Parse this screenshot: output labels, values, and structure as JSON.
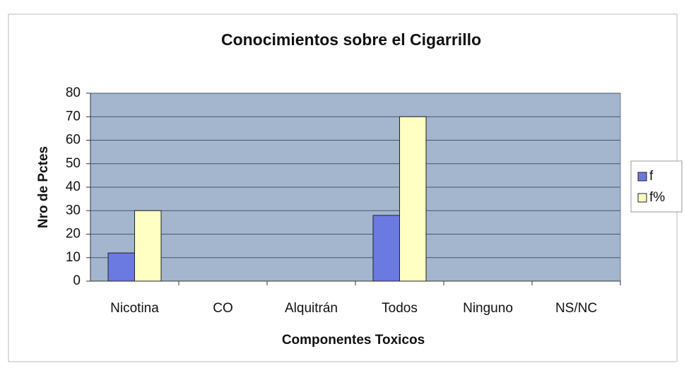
{
  "chart_data": {
    "type": "bar",
    "title": "Conocimientos sobre el Cigarrillo",
    "x_label": "Componentes Toxicos",
    "y_label": "Nro de Pctes",
    "categories": [
      "Nicotina",
      "CO",
      "Alquitrán",
      "Todos",
      "Ninguno",
      "NS/NC"
    ],
    "series": [
      {
        "name": "f",
        "color": "#6a7ae0",
        "values": [
          12,
          0,
          0,
          28,
          0,
          0
        ]
      },
      {
        "name": "f%",
        "color": "#ffffc4",
        "values": [
          30,
          0,
          0,
          70,
          0,
          0
        ]
      }
    ],
    "ylim": [
      0,
      80
    ],
    "yticks": [
      0,
      10,
      20,
      30,
      40,
      50,
      60,
      70,
      80
    ],
    "grid": true,
    "legend": "right"
  }
}
